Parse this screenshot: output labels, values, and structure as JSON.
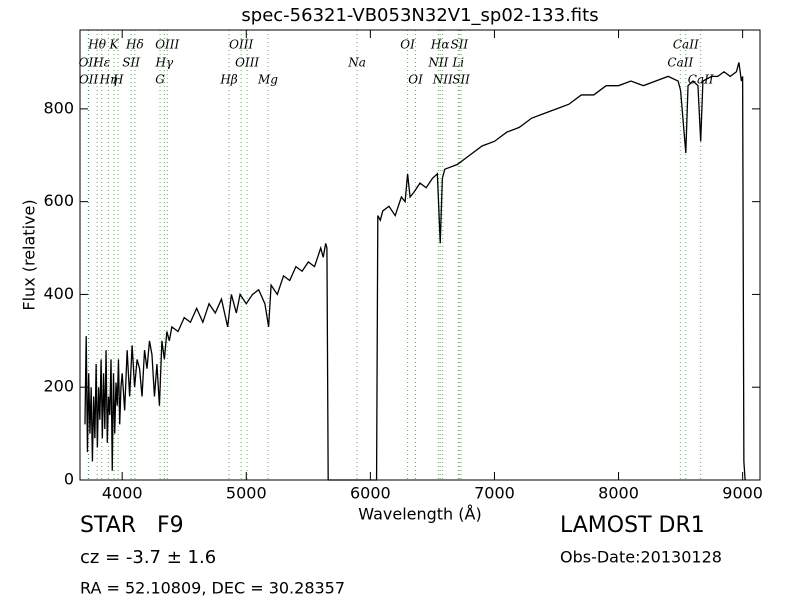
{
  "chart_data": {
    "type": "line",
    "title": "spec-56321-VB053N32V1_sp02-133.fits",
    "x_label": "Wavelength (Å)",
    "y_label": "Flux (relative)",
    "xlim": [
      3660,
      9140
    ],
    "ylim": [
      0,
      970
    ],
    "xticks": [
      4000,
      5000,
      6000,
      7000,
      8000,
      9000
    ],
    "yticks": [
      0,
      200,
      400,
      600,
      800
    ],
    "series": [
      {
        "color": "#000000",
        "x": [
          3700,
          3710,
          3720,
          3730,
          3740,
          3750,
          3760,
          3770,
          3780,
          3790,
          3800,
          3810,
          3820,
          3830,
          3840,
          3850,
          3860,
          3870,
          3880,
          3890,
          3900,
          3910,
          3920,
          3930,
          3940,
          3950,
          3960,
          3970,
          3980,
          3990,
          4000,
          4020,
          4040,
          4060,
          4080,
          4100,
          4120,
          4140,
          4160,
          4180,
          4200,
          4220,
          4240,
          4260,
          4280,
          4300,
          4320,
          4340,
          4360,
          4380,
          4400,
          4450,
          4500,
          4550,
          4600,
          4650,
          4700,
          4750,
          4800,
          4850,
          4880,
          4920,
          4950,
          5000,
          5050,
          5100,
          5150,
          5180,
          5200,
          5250,
          5300,
          5350,
          5400,
          5450,
          5500,
          5550,
          5600,
          5620,
          5640,
          5650,
          5660,
          6050,
          6060,
          6080,
          6100,
          6150,
          6200,
          6250,
          6280,
          6300,
          6320,
          6350,
          6400,
          6450,
          6500,
          6540,
          6563,
          6580,
          6600,
          6700,
          6800,
          6900,
          7000,
          7100,
          7200,
          7300,
          7400,
          7500,
          7600,
          7700,
          7800,
          7900,
          8000,
          8100,
          8200,
          8300,
          8400,
          8480,
          8500,
          8542,
          8560,
          8600,
          8640,
          8662,
          8680,
          8750,
          8800,
          8850,
          8900,
          8950,
          8970,
          8990,
          9000,
          9010,
          9020
        ],
        "values": [
          120,
          310,
          60,
          230,
          100,
          200,
          40,
          180,
          90,
          250,
          70,
          200,
          130,
          260,
          90,
          230,
          110,
          280,
          80,
          180,
          140,
          260,
          20,
          230,
          100,
          210,
          160,
          260,
          120,
          200,
          230,
          150,
          280,
          180,
          290,
          200,
          260,
          240,
          180,
          280,
          240,
          300,
          270,
          180,
          250,
          160,
          300,
          260,
          320,
          300,
          330,
          320,
          350,
          340,
          370,
          340,
          380,
          360,
          390,
          330,
          400,
          360,
          400,
          380,
          400,
          410,
          380,
          330,
          420,
          400,
          440,
          430,
          460,
          450,
          470,
          460,
          500,
          480,
          510,
          500,
          0,
          0,
          570,
          560,
          580,
          590,
          570,
          610,
          600,
          660,
          610,
          620,
          640,
          630,
          650,
          660,
          510,
          650,
          670,
          680,
          700,
          720,
          730,
          750,
          760,
          780,
          790,
          800,
          810,
          830,
          830,
          850,
          850,
          860,
          850,
          860,
          870,
          860,
          840,
          705,
          850,
          860,
          850,
          730,
          860,
          870,
          870,
          880,
          870,
          880,
          900,
          860,
          870,
          40,
          0
        ]
      }
    ],
    "spectral_lines": [
      [
        {
          "label": "Hθ",
          "wavelength": 3798
        },
        {
          "label": "K",
          "wavelength": 3934
        },
        {
          "label": "Hδ",
          "wavelength": 4102
        },
        {
          "label": "OIII",
          "wavelength": 4363
        },
        {
          "label": "OIII",
          "wavelength": 4959
        },
        {
          "label": "OI",
          "wavelength": 6300
        },
        {
          "label": "Hα",
          "wavelength": 6563
        },
        {
          "label": "SII",
          "wavelength": 6717
        },
        {
          "label": "CaII",
          "wavelength": 8542
        }
      ],
      [
        {
          "label": "OII",
          "wavelength": 3727
        },
        {
          "label": "Hε",
          "wavelength": 3835
        },
        {
          "label": "SII",
          "wavelength": 4072
        },
        {
          "label": "Hγ",
          "wavelength": 4340
        },
        {
          "label": "OIII",
          "wavelength": 5007
        },
        {
          "label": "Na",
          "wavelength": 5893
        },
        {
          "label": "NII",
          "wavelength": 6548
        },
        {
          "label": "Li",
          "wavelength": 6708
        },
        {
          "label": "CaII",
          "wavelength": 8498
        }
      ],
      [
        {
          "label": "OII",
          "wavelength": 3729
        },
        {
          "label": "Hη",
          "wavelength": 3889
        },
        {
          "label": "H",
          "wavelength": 3968
        },
        {
          "label": "G",
          "wavelength": 4305
        },
        {
          "label": "Hβ",
          "wavelength": 4861
        },
        {
          "label": "Mg",
          "wavelength": 5175
        },
        {
          "label": "OI",
          "wavelength": 6364
        },
        {
          "label": "NII",
          "wavelength": 6583
        },
        {
          "label": "SII",
          "wavelength": 6731
        },
        {
          "label": "CaII",
          "wavelength": 8662
        }
      ]
    ],
    "object_class": "STAR",
    "subclass": "F9",
    "redshift_text": "cz = -3.7 ± 1.6",
    "coordinates": "RA = 52.10809, DEC = 30.28357",
    "survey": "LAMOST DR1",
    "obs_date": "Obs-Date:20130128"
  }
}
